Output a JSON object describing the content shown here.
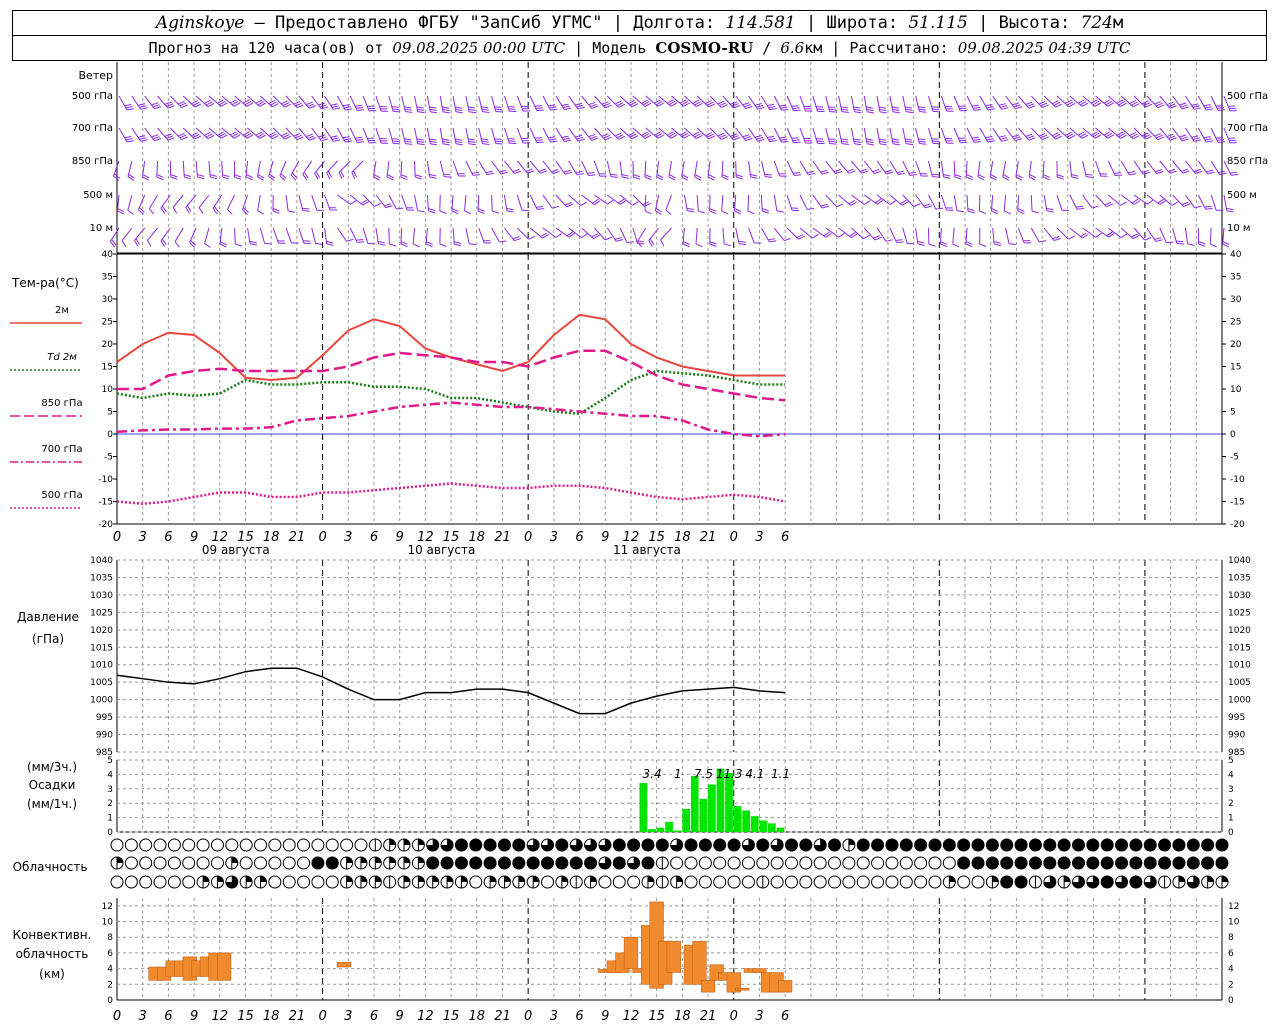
{
  "header": {
    "station": "Aginskoye",
    "dash": " – ",
    "provider": "Предоставлено ФГБУ \"ЗапСиб УГМС\"",
    "lon_label": "Долгота:",
    "lon_value": "114.581",
    "lat_label": "Широта:",
    "lat_value": "51.115",
    "alt_label": "Высота:",
    "alt_value": "724",
    "alt_unit": "м",
    "forecast_text": "Прогноз на 120 часа(ов) от",
    "forecast_start": "09.08.2025 00:00 UTC",
    "model_label": "Модель",
    "model_name": "COSMO-RU",
    "model_res": "6.6",
    "model_res_unit": "км",
    "calc_label": "Рассчитано:",
    "calc_time": "09.08.2025 04:39 UTC"
  },
  "labels": {
    "wind": "Ветер",
    "wind_levels": [
      "500 гПа",
      "700 гПа",
      "850 гПа",
      "500 м",
      "10 м"
    ],
    "wind_levels_right": [
      "500 гПа",
      "700 гПа",
      "850 гПа",
      "500 м",
      "10 м"
    ],
    "temp": "Тем-ра(°С)",
    "temp_legend": [
      "2м",
      "Td 2м",
      "850 гПа",
      "700 гПа",
      "500 гПа"
    ],
    "pressure": "Давление",
    "pressure_unit": "(гПа)",
    "precip_unit_3h": "(мм/3ч.)",
    "precip": "Осадки",
    "precip_unit_1h": "(мм/1ч.)",
    "cloud": "Облачность",
    "conv1": "Конвективн.",
    "conv2": "облачность",
    "conv3": "(км)"
  },
  "dates": [
    "09 августа",
    "10 августа",
    "11 августа"
  ],
  "colors": {
    "wind": "#8a2be2",
    "t2m": "#e8473f",
    "td2m": "#1a7a1a",
    "t850": "#e0198c",
    "zero": "#0000ff",
    "pressure": "#000000",
    "precip": "#00e600",
    "conv": "#f08a2c",
    "grid": "#999999"
  },
  "chart_data": [
    {
      "type": "wind-barbs",
      "levels": [
        "500 гПа",
        "700 гПа",
        "850 гПа",
        "500 м",
        "10 м"
      ],
      "x_hours": [
        0,
        129
      ],
      "note_levels_visible": true
    },
    {
      "type": "line",
      "title": "Тем-ра(°С)",
      "ylim": [
        -20,
        40
      ],
      "yticks": [
        -20,
        -15,
        -10,
        -5,
        0,
        5,
        10,
        15,
        20,
        25,
        30,
        35,
        40
      ],
      "x_ticks": [
        "0",
        "3",
        "6",
        "9",
        "12",
        "15",
        "18",
        "21",
        "0",
        "3",
        "6",
        "9",
        "12",
        "15",
        "18",
        "21",
        "0",
        "3",
        "6",
        "9",
        "12",
        "15",
        "18",
        "21",
        "0",
        "3",
        "6"
      ],
      "series": [
        {
          "name": "2м",
          "style": "solid",
          "color": "#e8473f",
          "x": [
            0,
            3,
            6,
            9,
            12,
            15,
            18,
            21,
            24,
            27,
            30,
            33,
            36,
            39,
            42,
            45,
            48,
            51,
            54,
            57,
            60,
            63,
            66,
            69,
            72,
            75,
            78
          ],
          "y": [
            16,
            20,
            22.5,
            22,
            18,
            12.5,
            12,
            12.5,
            17.5,
            23,
            25.5,
            24,
            19,
            17,
            15.5,
            14,
            16,
            22,
            26.5,
            25.5,
            20,
            17,
            15,
            14,
            13,
            13,
            13
          ]
        },
        {
          "name": "Td 2м",
          "style": "dotted",
          "color": "#1a7a1a",
          "x": [
            0,
            3,
            6,
            9,
            12,
            15,
            18,
            21,
            24,
            27,
            30,
            33,
            36,
            39,
            42,
            45,
            48,
            51,
            54,
            57,
            60,
            63,
            66,
            69,
            72,
            75,
            78
          ],
          "y": [
            9,
            8,
            9,
            8.5,
            9,
            12,
            11,
            11,
            11.5,
            11.5,
            10.5,
            10.5,
            10,
            8,
            8,
            7,
            6,
            5,
            4.5,
            8,
            12,
            14,
            13.5,
            13,
            12,
            11,
            11
          ]
        },
        {
          "name": "850 гПа",
          "style": "dashed",
          "color": "#e0198c",
          "x": [
            0,
            3,
            6,
            9,
            12,
            15,
            18,
            21,
            24,
            27,
            30,
            33,
            36,
            39,
            42,
            45,
            48,
            51,
            54,
            57,
            60,
            63,
            66,
            69,
            72,
            75,
            78
          ],
          "y": [
            10,
            10,
            13,
            14,
            14.5,
            14,
            14,
            14,
            14,
            15,
            17,
            18,
            17.5,
            17,
            16,
            16,
            15,
            17,
            18.5,
            18.5,
            16,
            13,
            11,
            10,
            9,
            8,
            7.5
          ]
        },
        {
          "name": "700 гПа",
          "style": "dashdot",
          "color": "#e0198c",
          "x": [
            0,
            3,
            6,
            9,
            12,
            15,
            18,
            21,
            24,
            27,
            30,
            33,
            36,
            39,
            42,
            45,
            48,
            51,
            54,
            57,
            60,
            63,
            66,
            69,
            72,
            75,
            78
          ],
          "y": [
            0.5,
            0.8,
            1,
            1,
            1.2,
            1.2,
            1.5,
            3,
            3.5,
            4,
            5,
            6,
            6.5,
            7,
            6.5,
            6,
            6,
            5.5,
            5,
            4.5,
            4,
            4,
            3,
            1,
            0,
            -0.5,
            0
          ]
        },
        {
          "name": "500 гПа",
          "style": "dotted",
          "color": "#e0198c",
          "x": [
            0,
            3,
            6,
            9,
            12,
            15,
            18,
            21,
            24,
            27,
            30,
            33,
            36,
            39,
            42,
            45,
            48,
            51,
            54,
            57,
            60,
            63,
            66,
            69,
            72,
            75,
            78
          ],
          "y": [
            -15,
            -15.5,
            -15,
            -14,
            -13,
            -13,
            -14,
            -14,
            -13,
            -13,
            -12.5,
            -12,
            -11.5,
            -11,
            -11.5,
            -12,
            -12,
            -11.5,
            -11.5,
            -12,
            -13,
            -14,
            -14.5,
            -14,
            -13.5,
            -14,
            -15
          ]
        }
      ]
    },
    {
      "type": "line",
      "title": "Давление",
      "ylabel": "(гПа)",
      "ylim": [
        985,
        1040
      ],
      "yticks": [
        985,
        990,
        995,
        1000,
        1005,
        1010,
        1015,
        1020,
        1025,
        1030,
        1035,
        1040
      ],
      "series": [
        {
          "x": [
            0,
            3,
            6,
            9,
            12,
            15,
            18,
            21,
            24,
            27,
            30,
            33,
            36,
            39,
            42,
            45,
            48,
            51,
            54,
            57,
            60,
            63,
            66,
            69,
            72,
            75,
            78
          ],
          "y": [
            1007,
            1006,
            1005,
            1004.5,
            1006,
            1008,
            1009,
            1009,
            1006.5,
            1003,
            1000,
            1000,
            1002,
            1002,
            1003,
            1003,
            1002,
            999,
            996,
            996,
            999,
            1001,
            1002.5,
            1003,
            1003.5,
            1002.5,
            1002
          ]
        }
      ]
    },
    {
      "type": "bar",
      "title": "Осадки",
      "ylim": [
        0,
        5
      ],
      "x": [
        61,
        62,
        63,
        64,
        65,
        66,
        67,
        68,
        69,
        70,
        71,
        72,
        73,
        74,
        75,
        76,
        77
      ],
      "values": [
        3.4,
        0.2,
        0.3,
        0.7,
        0.1,
        1.6,
        3.9,
        2.3,
        3.3,
        4.4,
        4.1,
        1.8,
        1.5,
        1.1,
        0.8,
        0.6,
        0.3
      ],
      "annotations": [
        {
          "x": 62,
          "text": "3.4"
        },
        {
          "x": 65,
          "text": "1"
        },
        {
          "x": 68,
          "text": "7.5"
        },
        {
          "x": 71,
          "text": "11.3"
        },
        {
          "x": 74,
          "text": "4.1"
        },
        {
          "x": 77,
          "text": "1.1"
        }
      ]
    },
    {
      "type": "bar",
      "title": "Конвективн. облачность",
      "ylabel": "(км)",
      "ylim": [
        0,
        13
      ],
      "yticks": [
        0,
        2,
        4,
        6,
        8,
        10,
        12
      ],
      "ranges": [
        [
          4.5,
          2.5,
          4.2
        ],
        [
          5.5,
          2.5,
          4.2
        ],
        [
          6.5,
          3,
          5
        ],
        [
          7.5,
          3,
          5
        ],
        [
          8.5,
          2.5,
          5.5
        ],
        [
          9.5,
          3,
          5
        ],
        [
          10.5,
          3,
          5.5
        ],
        [
          11.5,
          2.5,
          6
        ],
        [
          12.5,
          2.5,
          6
        ],
        [
          26.5,
          4.2,
          4.8
        ],
        [
          57,
          3.5,
          3.9
        ],
        [
          58,
          3.5,
          5
        ],
        [
          59,
          3.5,
          6
        ],
        [
          60,
          4,
          8
        ],
        [
          61,
          3.5,
          4
        ],
        [
          62,
          2,
          9.5
        ],
        [
          63,
          1.5,
          12.5
        ],
        [
          64,
          2,
          7.5
        ],
        [
          65,
          3.5,
          7.5
        ],
        [
          67,
          2,
          7
        ],
        [
          68,
          2,
          7.5
        ],
        [
          69,
          1,
          2.5
        ],
        [
          70,
          2.5,
          4.5
        ],
        [
          71,
          2.5,
          3.5
        ],
        [
          72,
          1,
          3.5
        ],
        [
          73,
          1.5,
          1.5
        ],
        [
          74,
          3.5,
          4
        ],
        [
          75,
          3.5,
          4
        ],
        [
          76,
          1,
          3.5
        ],
        [
          77,
          1,
          3.5
        ],
        [
          78,
          1,
          2.5
        ]
      ]
    }
  ],
  "cloud_rows": {
    "row1": "000000000000000000122233444443343334444344443434434244444444444444444444444444",
    "row2": "200000002000004422222244444444444434341000000000000000000004444444444444444444",
    "row3": "000000223220000022212222202222021200021200000100000000000020024413233434312322"
  }
}
